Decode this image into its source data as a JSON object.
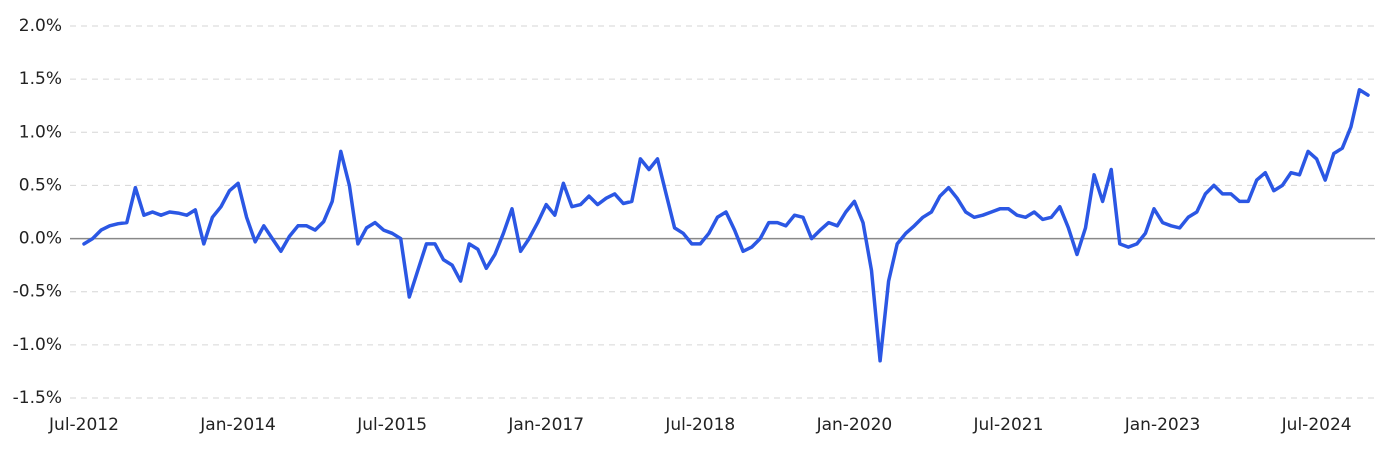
{
  "chart_data": {
    "type": "line",
    "color": "#2b57e4",
    "grid": true,
    "ylim": [
      -1.5,
      2.0
    ],
    "yticks": [
      {
        "value": -1.5,
        "label": "-1.5%"
      },
      {
        "value": -1.0,
        "label": "-1.0%"
      },
      {
        "value": -0.5,
        "label": "-0.5%"
      },
      {
        "value": 0,
        "label": "0.0%"
      },
      {
        "value": 0.5,
        "label": "0.5%"
      },
      {
        "value": 1.0,
        "label": "1.0%"
      },
      {
        "value": 1.5,
        "label": "1.5%"
      },
      {
        "value": 2.0,
        "label": "2.0%"
      }
    ],
    "xlim": [
      "2012-07",
      "2025-01"
    ],
    "xticks": [
      {
        "value": "2012-07",
        "label": "Jul-2012"
      },
      {
        "value": "2014-01",
        "label": "Jan-2014"
      },
      {
        "value": "2015-07",
        "label": "Jul-2015"
      },
      {
        "value": "2017-01",
        "label": "Jan-2017"
      },
      {
        "value": "2018-07",
        "label": "Jul-2018"
      },
      {
        "value": "2020-01",
        "label": "Jan-2020"
      },
      {
        "value": "2021-07",
        "label": "Jul-2021"
      },
      {
        "value": "2023-01",
        "label": "Jan-2023"
      },
      {
        "value": "2024-07",
        "label": "Jul-2024"
      }
    ],
    "x": [
      "2012-07",
      "2012-08",
      "2012-09",
      "2012-10",
      "2012-11",
      "2012-12",
      "2013-01",
      "2013-02",
      "2013-03",
      "2013-04",
      "2013-05",
      "2013-06",
      "2013-07",
      "2013-08",
      "2013-09",
      "2013-10",
      "2013-11",
      "2013-12",
      "2014-01",
      "2014-02",
      "2014-03",
      "2014-04",
      "2014-05",
      "2014-06",
      "2014-07",
      "2014-08",
      "2014-09",
      "2014-10",
      "2014-11",
      "2014-12",
      "2015-01",
      "2015-02",
      "2015-03",
      "2015-04",
      "2015-05",
      "2015-06",
      "2015-07",
      "2015-08",
      "2015-09",
      "2015-10",
      "2015-11",
      "2015-12",
      "2016-01",
      "2016-02",
      "2016-03",
      "2016-04",
      "2016-05",
      "2016-06",
      "2016-07",
      "2016-08",
      "2016-09",
      "2016-10",
      "2016-11",
      "2016-12",
      "2017-01",
      "2017-02",
      "2017-03",
      "2017-04",
      "2017-05",
      "2017-06",
      "2017-07",
      "2017-08",
      "2017-09",
      "2017-10",
      "2017-11",
      "2017-12",
      "2018-01",
      "2018-02",
      "2018-03",
      "2018-04",
      "2018-05",
      "2018-06",
      "2018-07",
      "2018-08",
      "2018-09",
      "2018-10",
      "2018-11",
      "2018-12",
      "2019-01",
      "2019-02",
      "2019-03",
      "2019-04",
      "2019-05",
      "2019-06",
      "2019-07",
      "2019-08",
      "2019-09",
      "2019-10",
      "2019-11",
      "2019-12",
      "2020-01",
      "2020-02",
      "2020-03",
      "2020-04",
      "2020-05",
      "2020-06",
      "2020-07",
      "2020-08",
      "2020-09",
      "2020-10",
      "2020-11",
      "2020-12",
      "2021-01",
      "2021-02",
      "2021-03",
      "2021-04",
      "2021-05",
      "2021-06",
      "2021-07",
      "2021-08",
      "2021-09",
      "2021-10",
      "2021-11",
      "2021-12",
      "2022-01",
      "2022-02",
      "2022-03",
      "2022-04",
      "2022-05",
      "2022-06",
      "2022-07",
      "2022-08",
      "2022-09",
      "2022-10",
      "2022-11",
      "2022-12",
      "2023-01",
      "2023-02",
      "2023-03",
      "2023-04",
      "2023-05",
      "2023-06",
      "2023-07",
      "2023-08",
      "2023-09",
      "2023-10",
      "2023-11",
      "2023-12",
      "2024-01",
      "2024-02",
      "2024-03",
      "2024-04",
      "2024-05",
      "2024-06",
      "2024-07",
      "2024-08",
      "2024-09",
      "2024-10",
      "2024-11",
      "2024-12",
      "2025-01"
    ],
    "values": [
      -0.05,
      0.0,
      0.08,
      0.12,
      0.14,
      0.15,
      0.48,
      0.22,
      0.25,
      0.22,
      0.25,
      0.24,
      0.22,
      0.27,
      -0.05,
      0.2,
      0.3,
      0.45,
      0.52,
      0.2,
      -0.03,
      0.12,
      0.0,
      -0.12,
      0.02,
      0.12,
      0.12,
      0.08,
      0.16,
      0.35,
      0.82,
      0.5,
      -0.05,
      0.1,
      0.15,
      0.08,
      0.05,
      0.0,
      -0.55,
      -0.3,
      -0.05,
      -0.05,
      -0.2,
      -0.25,
      -0.4,
      -0.05,
      -0.1,
      -0.28,
      -0.15,
      0.05,
      0.28,
      -0.12,
      0.0,
      0.15,
      0.32,
      0.22,
      0.52,
      0.3,
      0.32,
      0.4,
      0.32,
      0.38,
      0.42,
      0.33,
      0.35,
      0.75,
      0.65,
      0.75,
      0.42,
      0.1,
      0.05,
      -0.05,
      -0.05,
      0.05,
      0.2,
      0.25,
      0.08,
      -0.12,
      -0.08,
      0.0,
      0.15,
      0.15,
      0.12,
      0.22,
      0.2,
      0.0,
      0.08,
      0.15,
      0.12,
      0.25,
      0.35,
      0.15,
      -0.3,
      -1.15,
      -0.4,
      -0.05,
      0.05,
      0.12,
      0.2,
      0.25,
      0.4,
      0.48,
      0.38,
      0.25,
      0.2,
      0.22,
      0.25,
      0.28,
      0.28,
      0.22,
      0.2,
      0.25,
      0.18,
      0.2,
      0.3,
      0.1,
      -0.15,
      0.1,
      0.6,
      0.35,
      0.65,
      -0.05,
      -0.08,
      -0.05,
      0.05,
      0.28,
      0.15,
      0.12,
      0.1,
      0.2,
      0.25,
      0.42,
      0.5,
      0.42,
      0.42,
      0.35,
      0.35,
      0.55,
      0.62,
      0.45,
      0.5,
      0.62,
      0.6,
      0.82,
      0.75,
      0.55,
      0.8,
      0.85,
      1.05,
      1.4,
      1.35
    ]
  }
}
